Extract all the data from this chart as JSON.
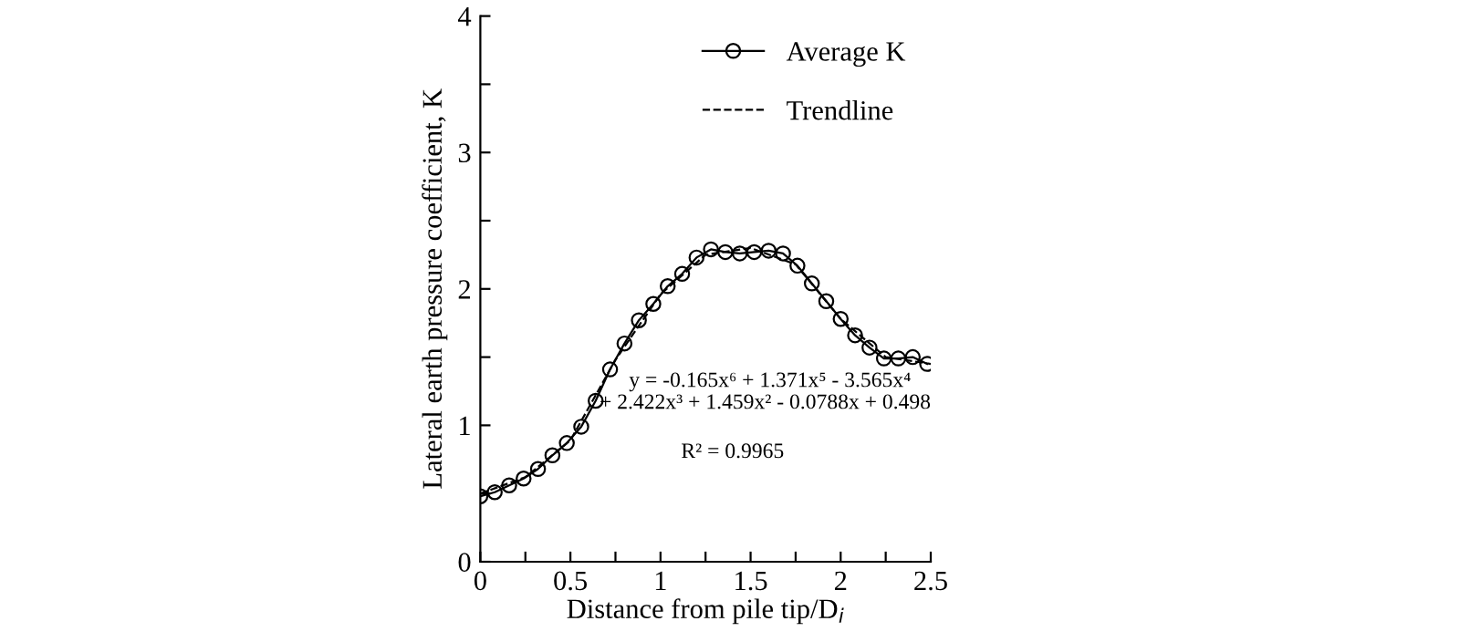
{
  "chart_data": {
    "type": "line",
    "xlabel": "Distance from pile tip/D$_{i}$",
    "ylabel": "Lateral earth pressure coefficient, K",
    "xlim": [
      0,
      2.5
    ],
    "ylim": [
      0,
      4
    ],
    "xticks": [
      0,
      {
        "value": 0.25,
        "label": null
      },
      0.5,
      {
        "value": 0.75,
        "label": null
      },
      1,
      {
        "value": 1.25,
        "label": null
      },
      1.5,
      {
        "value": 1.75,
        "label": null
      },
      2,
      {
        "value": 2.25,
        "label": null
      },
      2.5
    ],
    "yticks": [
      0,
      {
        "value": 0.5,
        "label": null
      },
      1,
      {
        "value": 1.5,
        "label": null
      },
      2,
      {
        "value": 2.5,
        "label": null
      },
      3,
      {
        "value": 3.5,
        "label": null
      },
      4
    ],
    "grid": false,
    "legend": "top right",
    "series": [
      {
        "name": "Average K",
        "color": "#000000",
        "marker": "circle",
        "line_style": "solid",
        "x": [
          0,
          0.08,
          0.16,
          0.24,
          0.32,
          0.4,
          0.48,
          0.56,
          0.64,
          0.72,
          0.8,
          0.88,
          0.96,
          1.04,
          1.12,
          1.2,
          1.28,
          1.36,
          1.44,
          1.52,
          1.6,
          1.68,
          1.76,
          1.84,
          1.92,
          2.0,
          2.08,
          2.16,
          2.24,
          2.32,
          2.4,
          2.48
        ],
        "values": [
          0.48,
          0.51,
          0.56,
          0.61,
          0.68,
          0.78,
          0.87,
          0.99,
          1.18,
          1.41,
          1.6,
          1.77,
          1.89,
          2.02,
          2.11,
          2.23,
          2.29,
          2.27,
          2.26,
          2.27,
          2.28,
          2.26,
          2.17,
          2.04,
          1.91,
          1.78,
          1.66,
          1.57,
          1.49,
          1.49,
          1.5,
          1.45
        ]
      },
      {
        "name": "Trendline",
        "color": "#000000",
        "marker": "none",
        "line_style": "dashed",
        "x": [
          0,
          0.25,
          0.5,
          0.75,
          1.0,
          1.25,
          1.5,
          1.75,
          2.0,
          2.25,
          2.5
        ],
        "values": [
          0.5,
          0.62,
          0.89,
          1.48,
          1.96,
          2.25,
          2.3,
          2.18,
          1.78,
          1.5,
          1.45
        ]
      }
    ],
    "annotations": [
      "y = -0.165x⁶ + 1.371x⁵ - 3.565x⁴",
      "+ 2.422x³ + 1.459x² - 0.0788x + 0.498",
      "R² = 0.9965"
    ]
  }
}
